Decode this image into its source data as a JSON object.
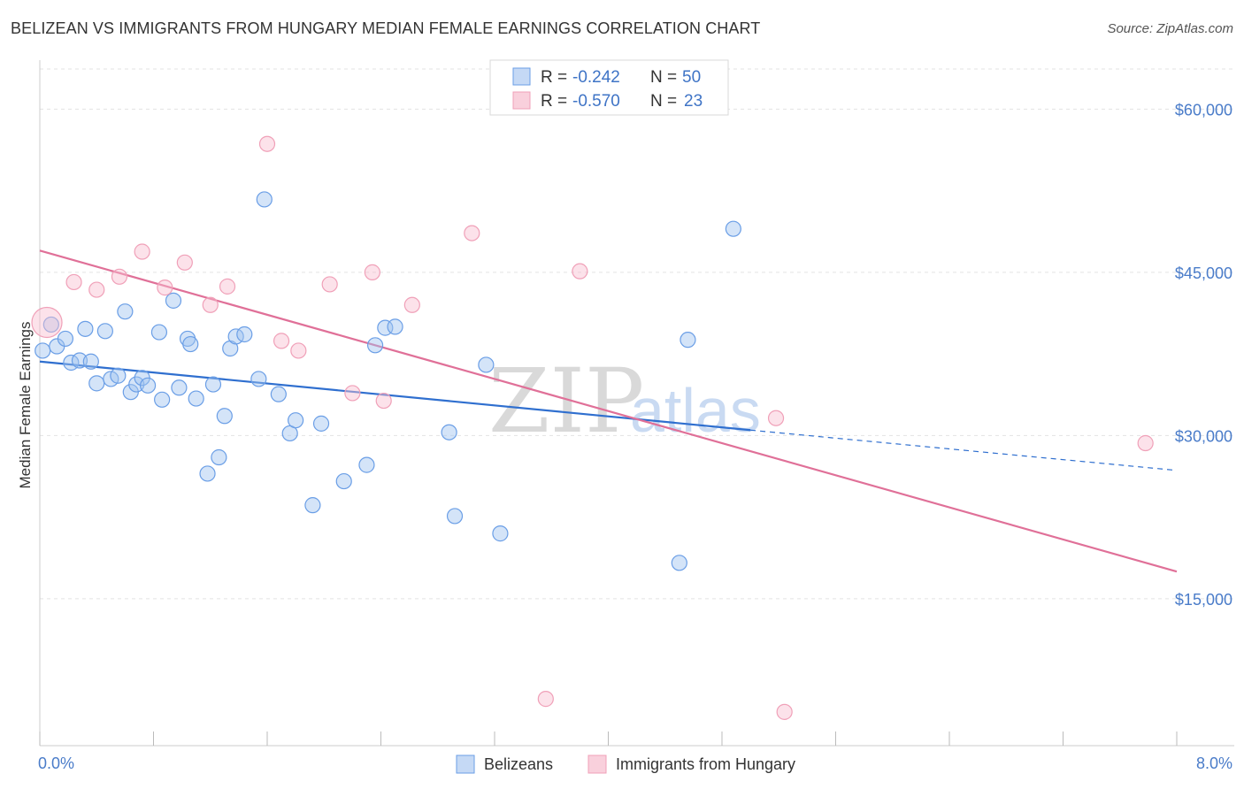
{
  "title": "BELIZEAN VS IMMIGRANTS FROM HUNGARY MEDIAN FEMALE EARNINGS CORRELATION CHART",
  "source": "Source: ZipAtlas.com",
  "watermark": {
    "part1": "ZIP",
    "part2": "atlas"
  },
  "legend": {
    "r_label": "R =",
    "n_label": "N =",
    "rows": [
      {
        "r": "-0.242",
        "n": "50"
      },
      {
        "r": "-0.570",
        "n": "23"
      }
    ]
  },
  "chart_data": {
    "type": "scatter",
    "title": "BELIZEAN VS IMMIGRANTS FROM HUNGARY MEDIAN FEMALE EARNINGS CORRELATION CHART",
    "xlabel": "",
    "ylabel": "Median Female Earnings",
    "xlim": [
      0,
      8
    ],
    "ylim": [
      1500,
      64500
    ],
    "y_ticks": [
      15000,
      30000,
      45000,
      60000
    ],
    "y_tick_labels": [
      "$15,000",
      "$30,000",
      "$45,000",
      "$60,000"
    ],
    "x_tick_labels": [
      "0.0%",
      "8.0%"
    ],
    "grid": true,
    "legend_position": "top-center",
    "colors": {
      "belizeans": "#6a9ee6",
      "hungary": "#f0a0b8",
      "blue_line": "#2f6fcf",
      "pink_line": "#e07098"
    },
    "series": [
      {
        "name": "Belizeans",
        "points": [
          [
            0.02,
            37800
          ],
          [
            0.08,
            40200
          ],
          [
            0.12,
            38200
          ],
          [
            0.18,
            38900
          ],
          [
            0.22,
            36700
          ],
          [
            0.28,
            36900
          ],
          [
            0.32,
            39800
          ],
          [
            0.36,
            36800
          ],
          [
            0.4,
            34800
          ],
          [
            0.46,
            39600
          ],
          [
            0.5,
            35200
          ],
          [
            0.55,
            35500
          ],
          [
            0.6,
            41400
          ],
          [
            0.64,
            34000
          ],
          [
            0.68,
            34700
          ],
          [
            0.72,
            35300
          ],
          [
            0.76,
            34600
          ],
          [
            0.84,
            39500
          ],
          [
            0.86,
            33300
          ],
          [
            0.94,
            42400
          ],
          [
            0.98,
            34400
          ],
          [
            1.04,
            38900
          ],
          [
            1.06,
            38400
          ],
          [
            1.1,
            33400
          ],
          [
            1.18,
            26500
          ],
          [
            1.22,
            34700
          ],
          [
            1.26,
            28000
          ],
          [
            1.3,
            31800
          ],
          [
            1.34,
            38000
          ],
          [
            1.38,
            39100
          ],
          [
            1.44,
            39300
          ],
          [
            1.54,
            35200
          ],
          [
            1.58,
            51700
          ],
          [
            1.68,
            33800
          ],
          [
            1.76,
            30200
          ],
          [
            1.8,
            31400
          ],
          [
            1.92,
            23600
          ],
          [
            1.98,
            31100
          ],
          [
            2.14,
            25800
          ],
          [
            2.3,
            27300
          ],
          [
            2.36,
            38300
          ],
          [
            2.43,
            39900
          ],
          [
            2.5,
            40000
          ],
          [
            2.88,
            30300
          ],
          [
            2.92,
            22600
          ],
          [
            3.14,
            36500
          ],
          [
            3.24,
            21000
          ],
          [
            4.5,
            18300
          ],
          [
            4.56,
            38800
          ],
          [
            4.88,
            49000
          ]
        ]
      },
      {
        "name": "Immigrants from Hungary",
        "points": [
          [
            0.05,
            40400
          ],
          [
            0.24,
            44100
          ],
          [
            0.4,
            43400
          ],
          [
            0.56,
            44600
          ],
          [
            0.72,
            46900
          ],
          [
            0.88,
            43600
          ],
          [
            1.02,
            45900
          ],
          [
            1.2,
            42000
          ],
          [
            1.32,
            43700
          ],
          [
            1.6,
            56800
          ],
          [
            1.7,
            38700
          ],
          [
            1.82,
            37800
          ],
          [
            2.04,
            43900
          ],
          [
            2.2,
            33900
          ],
          [
            2.34,
            45000
          ],
          [
            2.42,
            33200
          ],
          [
            2.62,
            42000
          ],
          [
            3.04,
            48600
          ],
          [
            3.56,
            5800
          ],
          [
            3.8,
            45100
          ],
          [
            5.18,
            31600
          ],
          [
            5.24,
            4600
          ],
          [
            7.78,
            29300
          ]
        ]
      }
    ],
    "trend_lines": [
      {
        "series": "Belizeans",
        "x_start": 0,
        "y_start": 36800,
        "x_end_solid": 5.0,
        "y_end_solid": 30500,
        "x_end": 8.0,
        "y_end": 26800
      },
      {
        "series": "Immigrants from Hungary",
        "x_start": 0,
        "y_start": 47000,
        "x_end": 8.0,
        "y_end": 17500
      }
    ]
  }
}
